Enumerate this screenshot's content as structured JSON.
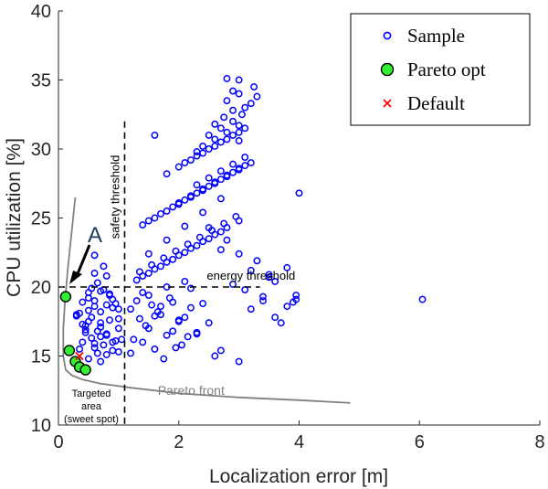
{
  "chart_data": {
    "type": "scatter",
    "xlabel": "Localization error [m]",
    "ylabel": "CPU utilization [%]",
    "xlim": [
      0,
      8
    ],
    "ylim": [
      10,
      40
    ],
    "x_ticks": [
      "0",
      "2",
      "4",
      "6",
      "8"
    ],
    "y_ticks": [
      "10",
      "15",
      "20",
      "25",
      "30",
      "35",
      "40"
    ],
    "grid": false,
    "legend": {
      "placement": "top-right",
      "entries": [
        "Sample",
        "Pareto opt",
        "Default"
      ]
    },
    "colors": {
      "sample": "#0000ff",
      "pareto_fill": "#33ee33",
      "default": "#ff0000",
      "pareto_front": "#808080"
    },
    "series": [
      {
        "name": "Sample",
        "x": [
          0.3,
          0.5,
          0.6,
          0.8,
          0.9,
          1.0,
          0.4,
          0.7,
          0.35,
          0.55,
          0.65,
          0.85,
          0.95,
          0.45,
          0.75,
          1.05,
          0.5,
          0.6,
          0.7,
          0.8,
          0.9,
          0.3,
          0.4,
          0.55,
          0.65,
          0.75,
          0.85,
          1.0,
          0.45,
          0.6,
          0.7,
          0.8,
          0.95,
          0.5,
          0.6,
          0.7,
          0.4,
          0.9,
          1.0,
          0.35,
          0.5,
          0.55,
          0.65,
          0.8,
          0.75,
          0.6,
          0.5,
          0.7,
          0.85,
          0.45,
          1.0,
          0.6,
          0.8,
          0.9,
          0.7,
          1.2,
          1.4,
          1.5,
          1.7,
          1.8,
          2.0,
          2.2,
          1.3,
          1.6,
          1.9,
          2.1,
          2.4,
          2.6,
          1.25,
          1.45,
          1.65,
          1.85,
          2.05,
          2.3,
          1.35,
          1.55,
          1.75,
          1.95,
          2.15,
          2.5,
          1.2,
          1.5,
          1.8,
          2.1,
          1.4,
          1.7,
          2.0,
          2.3,
          2.7,
          3.0,
          1.6,
          1.9,
          2.2,
          1.3,
          1.5,
          1.7,
          1.9,
          2.1,
          2.3,
          2.5,
          2.7,
          1.4,
          1.6,
          1.8,
          2.0,
          2.2,
          2.4,
          2.6,
          2.8,
          3.0,
          1.35,
          1.55,
          1.75,
          1.95,
          2.15,
          2.35,
          2.55,
          2.75,
          2.95,
          1.5,
          1.8,
          2.1,
          2.4,
          2.7,
          1.4,
          1.6,
          1.8,
          2.0,
          2.2,
          2.4,
          2.6,
          2.8,
          3.0,
          3.2,
          1.5,
          1.7,
          1.9,
          2.1,
          2.3,
          2.5,
          2.7,
          2.9,
          3.1,
          2.0,
          2.2,
          2.4,
          2.6,
          2.8,
          3.0,
          2.3,
          2.5,
          2.7,
          2.9,
          3.1,
          1.8,
          2.0,
          2.2,
          2.4,
          2.6,
          2.8,
          3.0,
          2.1,
          2.3,
          2.5,
          2.7,
          2.9,
          3.1,
          2.4,
          2.6,
          2.8,
          3.0,
          2.5,
          2.7,
          2.9,
          3.05,
          2.6,
          2.75,
          2.9,
          3.2,
          2.8,
          3.0,
          3.25,
          2.8,
          3.0,
          3.3,
          3.1,
          2.9,
          3.0,
          3.2,
          3.4,
          3.6,
          3.8,
          3.1,
          3.5,
          3.9,
          3.3,
          3.7,
          3.0,
          3.4,
          2.9,
          3.6,
          4.0,
          3.2,
          3.8,
          2.8,
          3.5,
          6.05,
          3.95,
          3.95,
          1.6,
          2.3,
          2.5,
          2.7
        ],
        "y": [
          18.0,
          17.5,
          19.0,
          16.5,
          18.5,
          17.0,
          16.0,
          18.2,
          15.5,
          17.8,
          16.8,
          19.5,
          18.8,
          17.2,
          15.8,
          16.2,
          19.2,
          18.6,
          17.4,
          16.6,
          15.4,
          17.9,
          18.9,
          16.3,
          15.2,
          19.8,
          17.6,
          18.4,
          16.9,
          15.6,
          17.1,
          18.7,
          16.1,
          19.6,
          15.9,
          16.4,
          17.3,
          19.1,
          15.3,
          18.1,
          14.8,
          19.9,
          20.3,
          20.8,
          21.5,
          22.3,
          18.3,
          14.6,
          19.4,
          16.7,
          17.7,
          21.0,
          15.1,
          16.0,
          19.7,
          15.2,
          16.0,
          17.0,
          18.0,
          16.5,
          17.5,
          18.5,
          19.0,
          15.5,
          16.8,
          17.8,
          18.8,
          15.0,
          16.2,
          17.2,
          18.2,
          19.2,
          15.8,
          16.7,
          17.7,
          18.7,
          14.8,
          15.6,
          16.4,
          17.4,
          18.4,
          19.4,
          20.0,
          20.4,
          19.6,
          18.6,
          17.6,
          16.6,
          15.4,
          14.6,
          17.9,
          18.9,
          19.9,
          20.5,
          21.0,
          21.5,
          22.0,
          22.5,
          23.0,
          23.5,
          24.0,
          20.8,
          21.3,
          21.8,
          22.3,
          22.8,
          23.3,
          23.8,
          24.3,
          24.8,
          21.1,
          21.6,
          22.1,
          22.6,
          23.1,
          23.6,
          24.1,
          24.6,
          25.1,
          22.4,
          23.4,
          24.4,
          25.4,
          26.4,
          24.5,
          25.0,
          25.5,
          26.0,
          26.5,
          27.0,
          27.5,
          28.0,
          28.5,
          29.0,
          24.8,
          25.3,
          25.8,
          26.3,
          26.8,
          27.3,
          27.8,
          28.3,
          28.8,
          26.1,
          26.6,
          27.1,
          27.6,
          28.1,
          28.6,
          27.4,
          27.9,
          28.4,
          28.9,
          29.4,
          28.2,
          28.7,
          29.2,
          29.7,
          30.2,
          30.7,
          31.2,
          29.0,
          29.5,
          30.0,
          30.5,
          31.0,
          31.5,
          30.2,
          30.7,
          31.2,
          31.7,
          31.0,
          31.5,
          32.0,
          32.5,
          31.8,
          32.3,
          32.8,
          33.3,
          33.5,
          34.0,
          34.5,
          35.1,
          35.0,
          33.8,
          33.0,
          34.2,
          30.6,
          18.4,
          19.3,
          20.4,
          21.4,
          19.8,
          20.9,
          18.9,
          21.9,
          17.4,
          22.4,
          19.0,
          20.2,
          17.8,
          26.8,
          21.2,
          18.6,
          23.4,
          20.7,
          19.1,
          19.1,
          19.4,
          31.0,
          29.8,
          24.3,
          22.7
        ]
      },
      {
        "name": "Pareto opt",
        "x": [
          0.12,
          0.18,
          0.28,
          0.35,
          0.45
        ],
        "y": [
          19.3,
          15.4,
          14.6,
          14.2,
          14.0
        ]
      },
      {
        "name": "Default",
        "x": [
          0.35
        ],
        "y": [
          15.0
        ]
      }
    ],
    "pareto_front": {
      "label": "Pareto front",
      "x": [
        0.28,
        0.22,
        0.16,
        0.11,
        0.08,
        0.08,
        0.12,
        0.22,
        0.4,
        0.7,
        1.2,
        2.0,
        3.0,
        4.0,
        4.85
      ],
      "y": [
        26.5,
        24.0,
        21.5,
        19.0,
        17.0,
        15.0,
        14.0,
        13.6,
        13.3,
        13.0,
        12.7,
        12.3,
        12.0,
        11.8,
        11.6
      ]
    },
    "thresholds": {
      "safety": {
        "label": "safety threshold",
        "x": 1.1,
        "y_top": 32
      },
      "energy": {
        "label": "energy threshold",
        "y": 20,
        "x_end": 3.35
      }
    },
    "annotations": {
      "point_a": "A",
      "targeted_area": [
        "Targeted",
        "area",
        "(sweet spot)"
      ]
    }
  }
}
